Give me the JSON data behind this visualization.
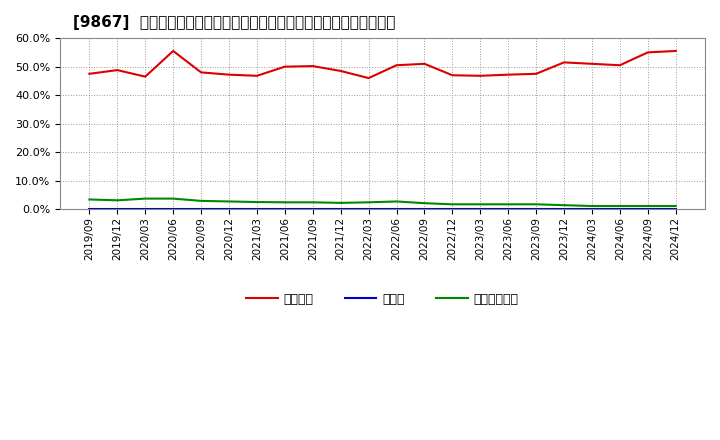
{
  "title": "[9867]  自己資本、のれん、繰延税金資産の総資産に対する比率の推移",
  "x_labels": [
    "2019/09",
    "2019/12",
    "2020/03",
    "2020/06",
    "2020/09",
    "2020/12",
    "2021/03",
    "2021/06",
    "2021/09",
    "2021/12",
    "2022/03",
    "2022/06",
    "2022/09",
    "2022/12",
    "2023/03",
    "2023/06",
    "2023/09",
    "2023/12",
    "2024/03",
    "2024/06",
    "2024/09",
    "2024/12"
  ],
  "jikoshihon": [
    47.5,
    48.8,
    46.5,
    55.5,
    48.0,
    47.2,
    46.8,
    50.0,
    50.2,
    48.5,
    46.0,
    50.5,
    51.0,
    47.0,
    46.8,
    47.2,
    47.5,
    51.5,
    51.0,
    50.5,
    55.0,
    55.5
  ],
  "noren": [
    0.0,
    0.0,
    0.0,
    0.0,
    0.0,
    0.0,
    0.0,
    0.0,
    0.0,
    0.0,
    0.0,
    0.0,
    0.0,
    0.0,
    0.0,
    0.0,
    0.0,
    0.0,
    0.0,
    0.0,
    0.0,
    0.0
  ],
  "kurinobe": [
    3.5,
    3.2,
    3.8,
    3.8,
    3.0,
    2.8,
    2.6,
    2.5,
    2.5,
    2.3,
    2.5,
    2.8,
    2.2,
    1.8,
    1.8,
    1.8,
    1.8,
    1.5,
    1.2,
    1.2,
    1.2,
    1.2
  ],
  "color_jikoshihon": "#dd0000",
  "color_noren": "#0000cc",
  "color_kurinobe": "#008800",
  "ylim_min": 0.0,
  "ylim_max": 60.0,
  "yticks": [
    0.0,
    10.0,
    20.0,
    30.0,
    40.0,
    50.0,
    60.0
  ],
  "legend_label_jikoshihon": "自己資本",
  "legend_label_noren": "のれん",
  "legend_label_kurinobe": "繰延税金資産",
  "background_color": "#ffffff",
  "plot_bg_color": "#ffffff",
  "title_fontsize": 11,
  "tick_fontsize": 7.5,
  "ytick_fontsize": 8,
  "legend_fontsize": 9
}
